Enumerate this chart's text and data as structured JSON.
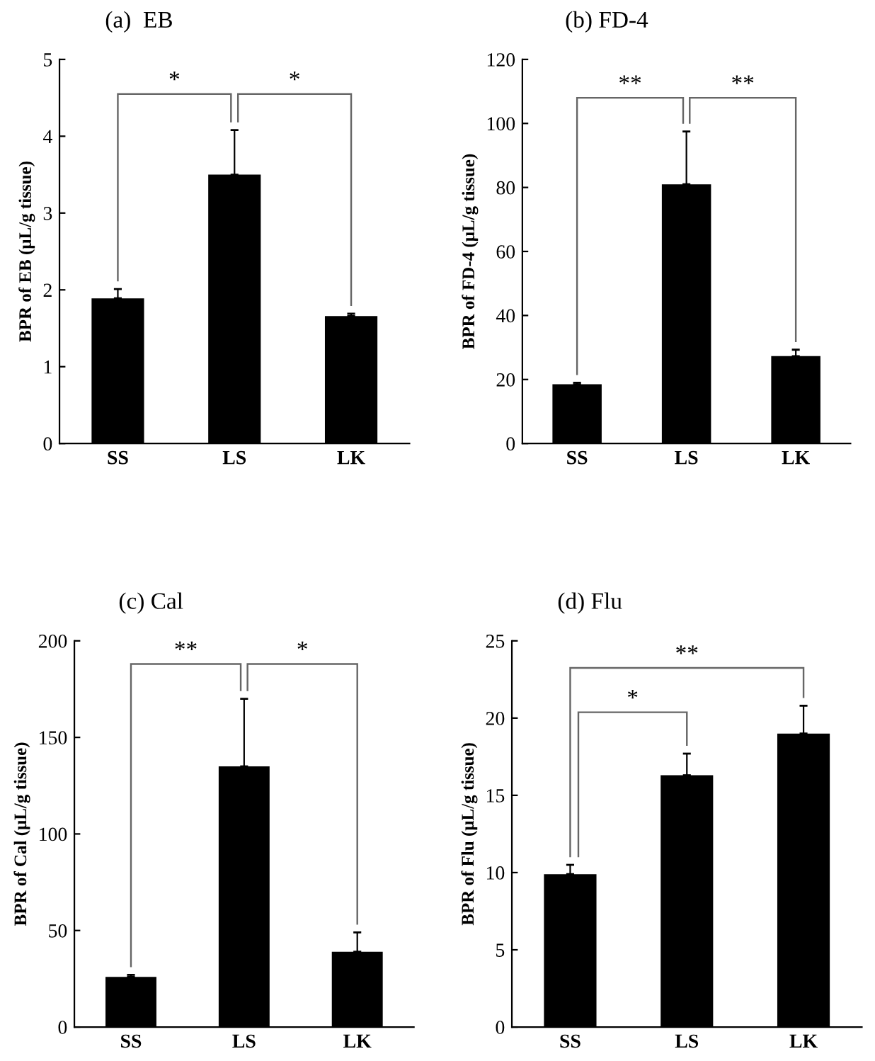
{
  "chart_data": [
    {
      "type": "bar",
      "title": "(a)  EB",
      "ylabel": "BPR of EB (μL/g tissue)",
      "categories": [
        "SS",
        "LS",
        "LK"
      ],
      "values": [
        1.89,
        3.5,
        1.66
      ],
      "errors": [
        0.12,
        0.58,
        0.03
      ],
      "color": "#000000",
      "ylim": [
        0,
        5
      ],
      "yticks": [
        0,
        1,
        2,
        3,
        4,
        5
      ],
      "grid": false,
      "annotations": [
        "*",
        "*"
      ]
    },
    {
      "type": "bar",
      "title": "(b) FD-4",
      "ylabel": "BPR of FD-4 (μL/g tissue)",
      "categories": [
        "SS",
        "LS",
        "LK"
      ],
      "values": [
        18.5,
        81,
        27.3
      ],
      "errors": [
        0.5,
        16.5,
        2
      ],
      "color": "#000000",
      "ylim": [
        0,
        120
      ],
      "yticks": [
        0,
        20,
        40,
        60,
        80,
        100,
        120
      ],
      "grid": false,
      "annotations": [
        "**",
        "**"
      ]
    },
    {
      "type": "bar",
      "title": "(c) Cal",
      "ylabel": "BPR of Cal (μL/g tissue)",
      "categories": [
        "SS",
        "LS",
        "LK"
      ],
      "values": [
        26,
        135,
        39
      ],
      "errors": [
        1,
        35,
        10
      ],
      "color": "#000000",
      "ylim": [
        0,
        200
      ],
      "yticks": [
        0,
        50,
        100,
        150,
        200
      ],
      "grid": false,
      "annotations": [
        "**",
        "*"
      ]
    },
    {
      "type": "bar",
      "title": "(d) Flu",
      "ylabel": "BPR of Flu (μL/g tissue)",
      "categories": [
        "SS",
        "LS",
        "LK"
      ],
      "values": [
        9.9,
        16.3,
        19
      ],
      "errors": [
        0.6,
        1.4,
        1.8
      ],
      "color": "#000000",
      "ylim": [
        0,
        25
      ],
      "yticks": [
        0,
        5,
        10,
        15,
        20,
        25
      ],
      "grid": false,
      "annotations": [
        "*",
        "**"
      ]
    }
  ]
}
